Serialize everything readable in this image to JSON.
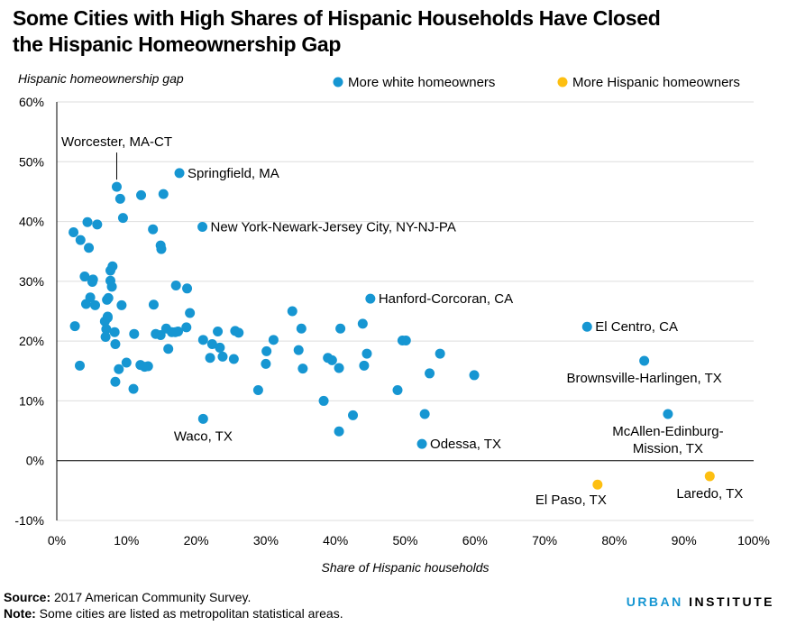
{
  "title": {
    "line1": "Some Cities with High Shares of Hispanic Households Have Closed",
    "line2": "the Hispanic Homeownership Gap"
  },
  "colors": {
    "blue": "#1696d2",
    "yellow": "#fdbf11",
    "grid": "#dedede",
    "text": "#000000"
  },
  "chart_data": {
    "type": "scatter",
    "ylabel": "Hispanic homeownership gap",
    "xlabel": "Share of Hispanic households",
    "xlim": [
      0,
      100
    ],
    "ylim": [
      -10,
      60
    ],
    "xticks": [
      0,
      10,
      20,
      30,
      40,
      50,
      60,
      70,
      80,
      90,
      100
    ],
    "yticks": [
      -10,
      0,
      10,
      20,
      30,
      40,
      50,
      60
    ],
    "xtick_labels": [
      "0%",
      "10%",
      "20%",
      "30%",
      "40%",
      "50%",
      "60%",
      "70%",
      "80%",
      "90%",
      "100%"
    ],
    "ytick_labels": [
      "-10%",
      "0%",
      "10%",
      "20%",
      "30%",
      "40%",
      "50%",
      "60%"
    ],
    "legend": [
      {
        "label": "More white homeowners",
        "color": "#1696d2"
      },
      {
        "label": "More Hispanic homeowners",
        "color": "#fdbf11"
      }
    ],
    "series": [
      {
        "name": "More white homeowners",
        "color": "#1696d2",
        "points": [
          [
            8.6,
            45.8
          ],
          [
            9.1,
            43.8
          ],
          [
            12.1,
            44.4
          ],
          [
            15.3,
            44.6
          ],
          [
            17.6,
            48.1
          ],
          [
            2.4,
            38.2
          ],
          [
            3.4,
            36.9
          ],
          [
            4.4,
            39.9
          ],
          [
            5.8,
            39.5
          ],
          [
            9.5,
            40.6
          ],
          [
            4.6,
            35.6
          ],
          [
            13.8,
            38.7
          ],
          [
            14.9,
            36.0
          ],
          [
            15.0,
            35.4
          ],
          [
            20.9,
            39.1
          ],
          [
            4.0,
            30.8
          ],
          [
            5.2,
            30.3
          ],
          [
            5.1,
            29.9
          ],
          [
            7.7,
            31.8
          ],
          [
            8.0,
            32.5
          ],
          [
            7.7,
            30.1
          ],
          [
            7.9,
            29.1
          ],
          [
            4.8,
            27.3
          ],
          [
            7.2,
            26.9
          ],
          [
            7.4,
            27.2
          ],
          [
            4.2,
            26.2
          ],
          [
            5.5,
            26.0
          ],
          [
            9.3,
            26.0
          ],
          [
            13.9,
            26.1
          ],
          [
            17.1,
            29.3
          ],
          [
            18.7,
            28.8
          ],
          [
            2.6,
            22.5
          ],
          [
            6.9,
            23.3
          ],
          [
            7.3,
            23.9
          ],
          [
            7.3,
            24.1
          ],
          [
            7.1,
            22.0
          ],
          [
            8.3,
            21.5
          ],
          [
            7.0,
            20.7
          ],
          [
            8.4,
            19.5
          ],
          [
            11.1,
            21.2
          ],
          [
            14.2,
            21.2
          ],
          [
            14.9,
            21.0
          ],
          [
            15.7,
            22.1
          ],
          [
            16.5,
            21.5
          ],
          [
            17.0,
            21.5
          ],
          [
            17.4,
            21.6
          ],
          [
            19.1,
            24.7
          ],
          [
            18.6,
            22.3
          ],
          [
            16.0,
            18.7
          ],
          [
            21.0,
            20.2
          ],
          [
            22.3,
            19.5
          ],
          [
            23.1,
            21.6
          ],
          [
            23.4,
            18.9
          ],
          [
            22.0,
            17.2
          ],
          [
            23.8,
            17.4
          ],
          [
            25.6,
            21.7
          ],
          [
            26.1,
            21.4
          ],
          [
            25.4,
            17.0
          ],
          [
            3.3,
            15.9
          ],
          [
            8.9,
            15.3
          ],
          [
            10.0,
            16.4
          ],
          [
            12.0,
            16.0
          ],
          [
            12.6,
            15.7
          ],
          [
            13.1,
            15.8
          ],
          [
            8.4,
            13.2
          ],
          [
            11.0,
            12.0
          ],
          [
            21.0,
            7.0
          ],
          [
            28.9,
            11.8
          ],
          [
            30.1,
            18.3
          ],
          [
            31.1,
            20.2
          ],
          [
            30.0,
            16.2
          ],
          [
            33.8,
            25.0
          ],
          [
            35.1,
            22.1
          ],
          [
            34.7,
            18.5
          ],
          [
            35.3,
            15.4
          ],
          [
            38.3,
            10.0
          ],
          [
            38.9,
            17.2
          ],
          [
            39.5,
            16.8
          ],
          [
            40.5,
            15.5
          ],
          [
            40.7,
            22.1
          ],
          [
            40.5,
            4.9
          ],
          [
            42.5,
            7.6
          ],
          [
            43.9,
            22.9
          ],
          [
            44.1,
            15.9
          ],
          [
            44.5,
            17.9
          ],
          [
            45.0,
            27.1
          ],
          [
            48.9,
            11.8
          ],
          [
            49.6,
            20.1
          ],
          [
            50.1,
            20.1
          ],
          [
            52.4,
            2.8
          ],
          [
            52.8,
            7.8
          ],
          [
            53.5,
            14.6
          ],
          [
            55.0,
            17.9
          ],
          [
            59.9,
            14.3
          ],
          [
            76.1,
            22.4
          ],
          [
            84.3,
            16.7
          ],
          [
            87.7,
            7.8
          ]
        ]
      },
      {
        "name": "More Hispanic homeowners",
        "color": "#fdbf11",
        "points": [
          [
            77.6,
            -4.0
          ],
          [
            93.7,
            -2.6
          ]
        ]
      }
    ],
    "annotations": [
      {
        "text": "Worcester, MA-CT",
        "x": 8.6,
        "y": 45.8,
        "anchor": "middle",
        "line": true
      },
      {
        "text": "Springfield, MA",
        "x": 17.6,
        "y": 48.1,
        "anchor": "start"
      },
      {
        "text": "New York-Newark-Jersey City, NY-NJ-PA",
        "x": 20.9,
        "y": 39.1,
        "anchor": "start"
      },
      {
        "text": "Hanford-Corcoran, CA",
        "x": 45.0,
        "y": 27.1,
        "anchor": "start"
      },
      {
        "text": "El Centro, CA",
        "x": 76.1,
        "y": 22.4,
        "anchor": "start"
      },
      {
        "text": "Brownsville-Harlingen, TX",
        "x": 84.3,
        "y": 16.7,
        "anchor": "middle-below"
      },
      {
        "text": "Waco, TX",
        "x": 21.0,
        "y": 7.0,
        "anchor": "middle-below"
      },
      {
        "text": "Odessa, TX",
        "x": 52.4,
        "y": 2.8,
        "anchor": "start"
      },
      {
        "text": "McAllen-Edinburg-",
        "x": 87.7,
        "y": 7.8,
        "anchor": "middle-below"
      },
      {
        "text": "Mission, TX",
        "x": 87.7,
        "y": 7.8,
        "anchor": "middle-below2"
      },
      {
        "text": "El Paso, TX",
        "x": 77.6,
        "y": -4.0,
        "anchor": "end-below"
      },
      {
        "text": "Laredo, TX",
        "x": 93.7,
        "y": -2.6,
        "anchor": "middle-below"
      }
    ]
  },
  "footer": {
    "source_label": "Source:",
    "source_text": "2017 American Community Survey.",
    "note_label": "Note:",
    "note_text": "Some cities are listed as metropolitan statistical areas."
  },
  "logo": {
    "part1": "URBAN",
    "part2": "INSTITUTE"
  }
}
